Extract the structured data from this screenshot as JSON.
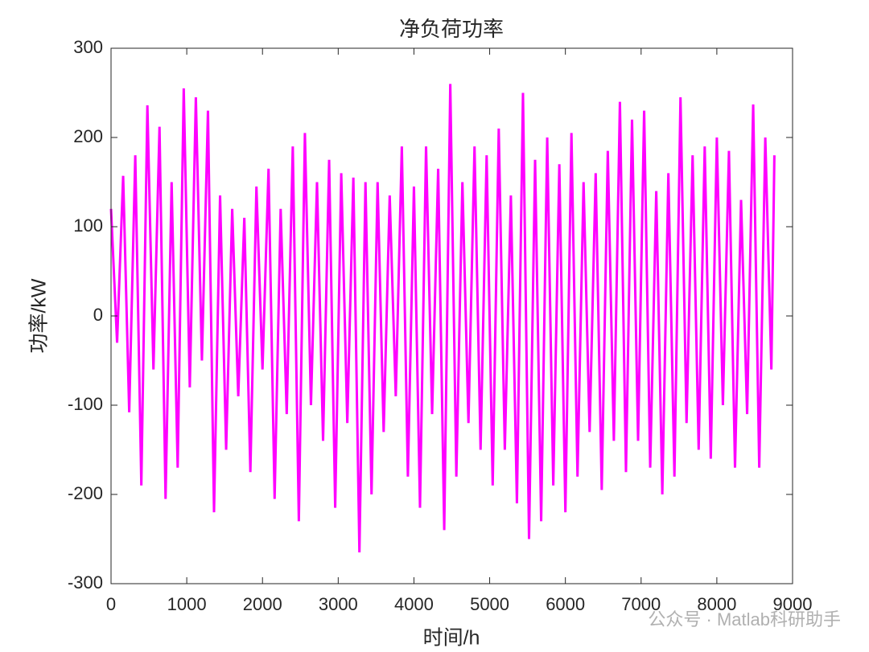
{
  "chart_data": {
    "type": "line",
    "title": "净负荷功率",
    "x_label": "时间/h",
    "y_label": "功率/kW",
    "watermark": "公众号 · Matlab科研助手",
    "xlim": [
      0,
      9000
    ],
    "xticks": [
      0,
      1000,
      2000,
      3000,
      4000,
      5000,
      6000,
      7000,
      8000,
      9000
    ],
    "ylim": [
      -300,
      300
    ],
    "yticks": [
      -300,
      -200,
      -100,
      0,
      100,
      200,
      300
    ],
    "grid": false,
    "x": [
      0,
      80,
      160,
      240,
      320,
      400,
      480,
      560,
      640,
      720,
      800,
      880,
      960,
      1040,
      1120,
      1200,
      1280,
      1360,
      1440,
      1520,
      1600,
      1680,
      1760,
      1840,
      1920,
      2000,
      2080,
      2160,
      2240,
      2320,
      2400,
      2480,
      2560,
      2640,
      2720,
      2800,
      2880,
      2960,
      3040,
      3120,
      3200,
      3280,
      3360,
      3440,
      3520,
      3600,
      3680,
      3760,
      3840,
      3920,
      4000,
      4080,
      4160,
      4240,
      4320,
      4400,
      4480,
      4560,
      4640,
      4720,
      4800,
      4880,
      4960,
      5040,
      5120,
      5200,
      5280,
      5360,
      5440,
      5520,
      5600,
      5680,
      5760,
      5840,
      5920,
      6000,
      6080,
      6160,
      6240,
      6320,
      6400,
      6480,
      6560,
      6640,
      6720,
      6800,
      6880,
      6960,
      7040,
      7120,
      7200,
      7280,
      7360,
      7440,
      7520,
      7600,
      7680,
      7760,
      7840,
      7920,
      8000,
      8080,
      8160,
      8240,
      8320,
      8400,
      8480,
      8560,
      8640,
      8720,
      8760
    ],
    "series": [
      {
        "color": "#ff00ff",
        "values": [
          120,
          -30,
          157,
          -108,
          180,
          -190,
          236,
          -60,
          212,
          -205,
          150,
          -170,
          255,
          -80,
          245,
          -50,
          230,
          -220,
          135,
          -150,
          120,
          -90,
          110,
          -175,
          145,
          -60,
          165,
          -205,
          120,
          -110,
          190,
          -230,
          205,
          -100,
          150,
          -140,
          175,
          -215,
          160,
          -120,
          155,
          -265,
          150,
          -200,
          150,
          -130,
          135,
          -90,
          190,
          -180,
          145,
          -215,
          190,
          -110,
          165,
          -240,
          260,
          -180,
          150,
          -120,
          190,
          -150,
          180,
          -190,
          210,
          -150,
          135,
          -210,
          250,
          -250,
          175,
          -230,
          200,
          -190,
          170,
          -220,
          205,
          -180,
          150,
          -130,
          160,
          -195,
          185,
          -140,
          240,
          -175,
          220,
          -140,
          230,
          -170,
          140,
          -200,
          160,
          -180,
          245,
          -120,
          180,
          -150,
          190,
          -160,
          200,
          -100,
          185,
          -170,
          130,
          -110,
          237,
          -170,
          200,
          -60,
          180
        ]
      }
    ]
  }
}
